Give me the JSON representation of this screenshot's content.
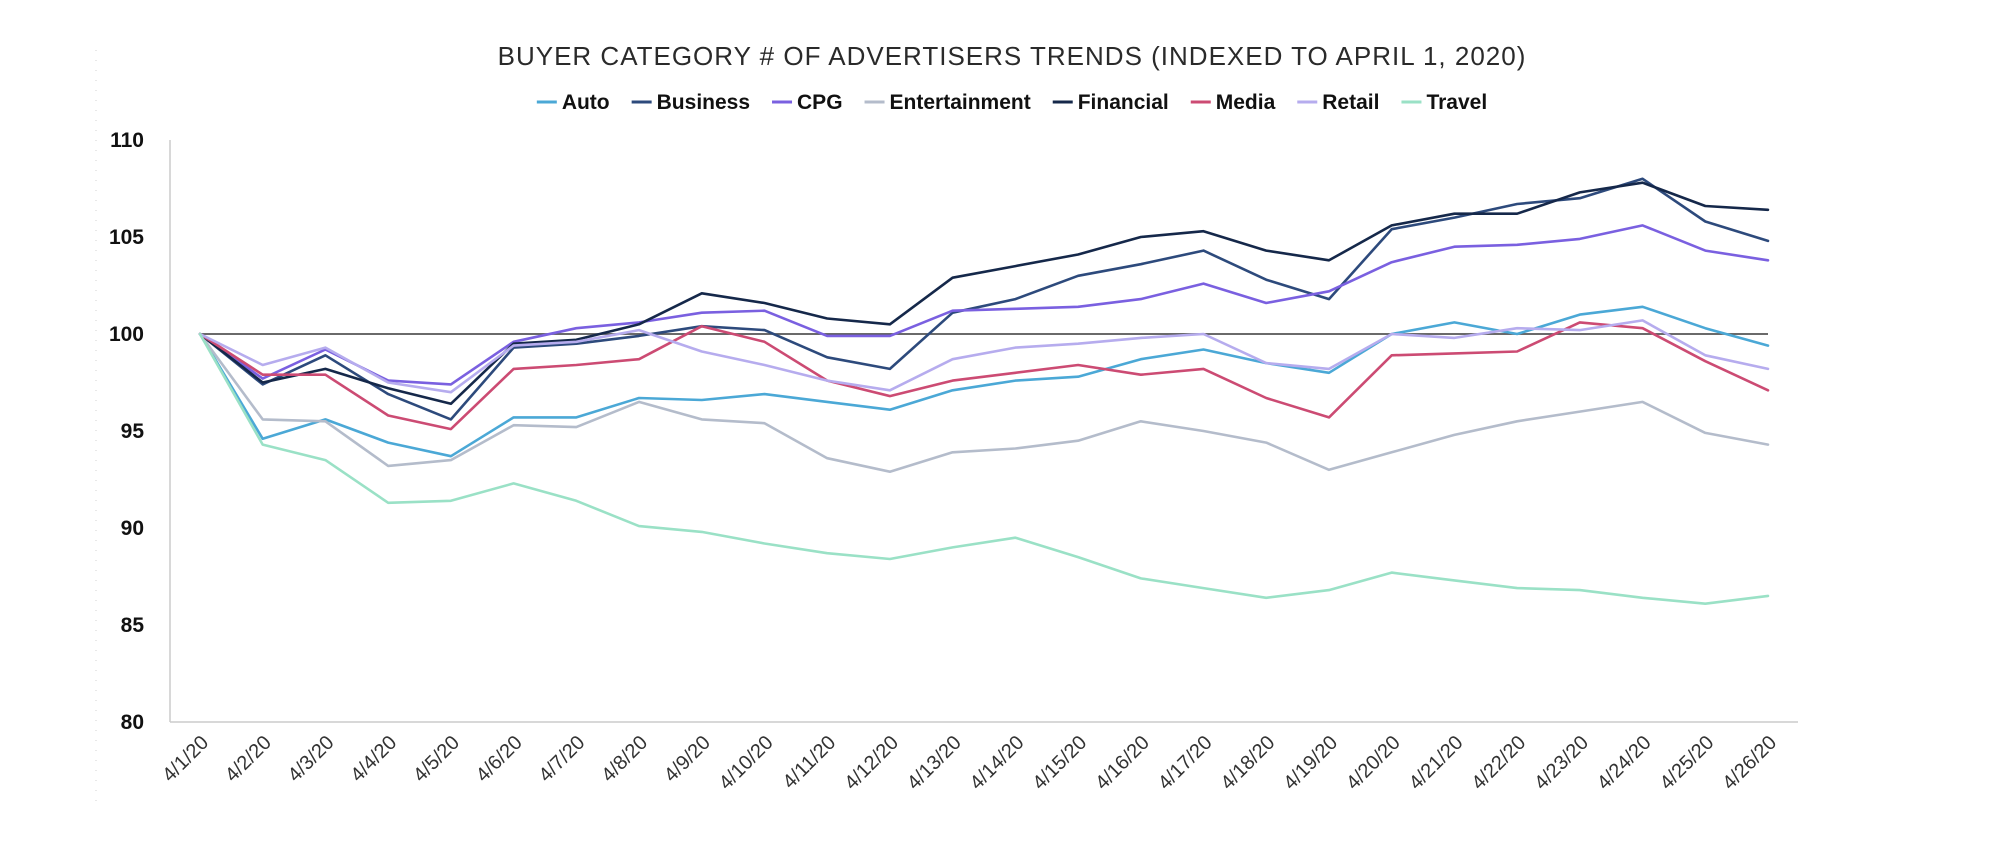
{
  "chart_data": {
    "type": "line",
    "title": "BUYER CATEGORY # OF ADVERTISERS TRENDS (INDEXED TO APRIL 1, 2020)",
    "xlabel": "",
    "ylabel": "",
    "categories": [
      "4/1/20",
      "4/2/20",
      "4/3/20",
      "4/4/20",
      "4/5/20",
      "4/6/20",
      "4/7/20",
      "4/8/20",
      "4/9/20",
      "4/10/20",
      "4/11/20",
      "4/12/20",
      "4/13/20",
      "4/14/20",
      "4/15/20",
      "4/16/20",
      "4/17/20",
      "4/18/20",
      "4/19/20",
      "4/20/20",
      "4/21/20",
      "4/22/20",
      "4/23/20",
      "4/24/20",
      "4/25/20",
      "4/26/20"
    ],
    "ylim": [
      80,
      110
    ],
    "yticks": [
      80,
      85,
      90,
      95,
      100,
      105,
      110
    ],
    "reference_line": 100,
    "grid": false,
    "legend_position": "top-center",
    "series": [
      {
        "name": "Auto",
        "color": "#4ba8d6",
        "values": [
          100,
          94.6,
          95.6,
          94.4,
          93.7,
          95.7,
          95.7,
          96.7,
          96.6,
          96.9,
          96.5,
          96.1,
          97.1,
          97.6,
          97.8,
          98.7,
          99.2,
          98.5,
          98.0,
          100.0,
          100.6,
          100.0,
          101.0,
          101.4,
          100.3,
          99.4
        ]
      },
      {
        "name": "Business",
        "color": "#2d4a7c",
        "values": [
          100,
          97.4,
          98.9,
          96.9,
          95.6,
          99.3,
          99.5,
          99.9,
          100.4,
          100.2,
          98.8,
          98.2,
          101.1,
          101.8,
          103.0,
          103.6,
          104.3,
          102.8,
          101.8,
          105.4,
          106.0,
          106.7,
          107.0,
          108.0,
          105.8,
          104.8
        ]
      },
      {
        "name": "CPG",
        "color": "#7a60e0",
        "values": [
          100,
          97.7,
          99.2,
          97.6,
          97.4,
          99.6,
          100.3,
          100.6,
          101.1,
          101.2,
          99.9,
          99.9,
          101.2,
          101.3,
          101.4,
          101.8,
          102.6,
          101.6,
          102.2,
          103.7,
          104.5,
          104.6,
          104.9,
          105.6,
          104.3,
          103.8
        ]
      },
      {
        "name": "Entertainment",
        "color": "#b4bccb",
        "values": [
          100,
          95.6,
          95.5,
          93.2,
          93.5,
          95.3,
          95.2,
          96.5,
          95.6,
          95.4,
          93.6,
          92.9,
          93.9,
          94.1,
          94.5,
          95.5,
          95.0,
          94.4,
          93.0,
          93.9,
          94.8,
          95.5,
          96.0,
          96.5,
          94.9,
          94.3
        ]
      },
      {
        "name": "Financial",
        "color": "#15284a",
        "values": [
          100,
          97.5,
          98.2,
          97.2,
          96.4,
          99.5,
          99.7,
          100.5,
          102.1,
          101.6,
          100.8,
          100.5,
          102.9,
          103.5,
          104.1,
          105.0,
          105.3,
          104.3,
          103.8,
          105.6,
          106.2,
          106.2,
          107.3,
          107.8,
          106.6,
          106.4
        ]
      },
      {
        "name": "Media",
        "color": "#cc4b73",
        "values": [
          100,
          97.9,
          97.9,
          95.8,
          95.1,
          98.2,
          98.4,
          98.7,
          100.4,
          99.6,
          97.6,
          96.8,
          97.6,
          98.0,
          98.4,
          97.9,
          98.2,
          96.7,
          95.7,
          98.9,
          99.0,
          99.1,
          100.6,
          100.3,
          98.6,
          97.1
        ]
      },
      {
        "name": "Retail",
        "color": "#b6acee",
        "values": [
          100,
          98.4,
          99.3,
          97.5,
          97.0,
          99.4,
          99.6,
          100.2,
          99.1,
          98.4,
          97.6,
          97.1,
          98.7,
          99.3,
          99.5,
          99.8,
          100.0,
          98.5,
          98.2,
          100.0,
          99.8,
          100.3,
          100.2,
          100.7,
          98.9,
          98.2
        ]
      },
      {
        "name": "Travel",
        "color": "#9ae1c6",
        "values": [
          100,
          94.3,
          93.5,
          91.3,
          91.4,
          92.3,
          91.4,
          90.1,
          89.8,
          89.2,
          88.7,
          88.4,
          89.0,
          89.5,
          88.5,
          87.4,
          86.9,
          86.4,
          86.8,
          87.7,
          87.3,
          86.9,
          86.8,
          86.4,
          86.1,
          86.5
        ]
      }
    ]
  }
}
